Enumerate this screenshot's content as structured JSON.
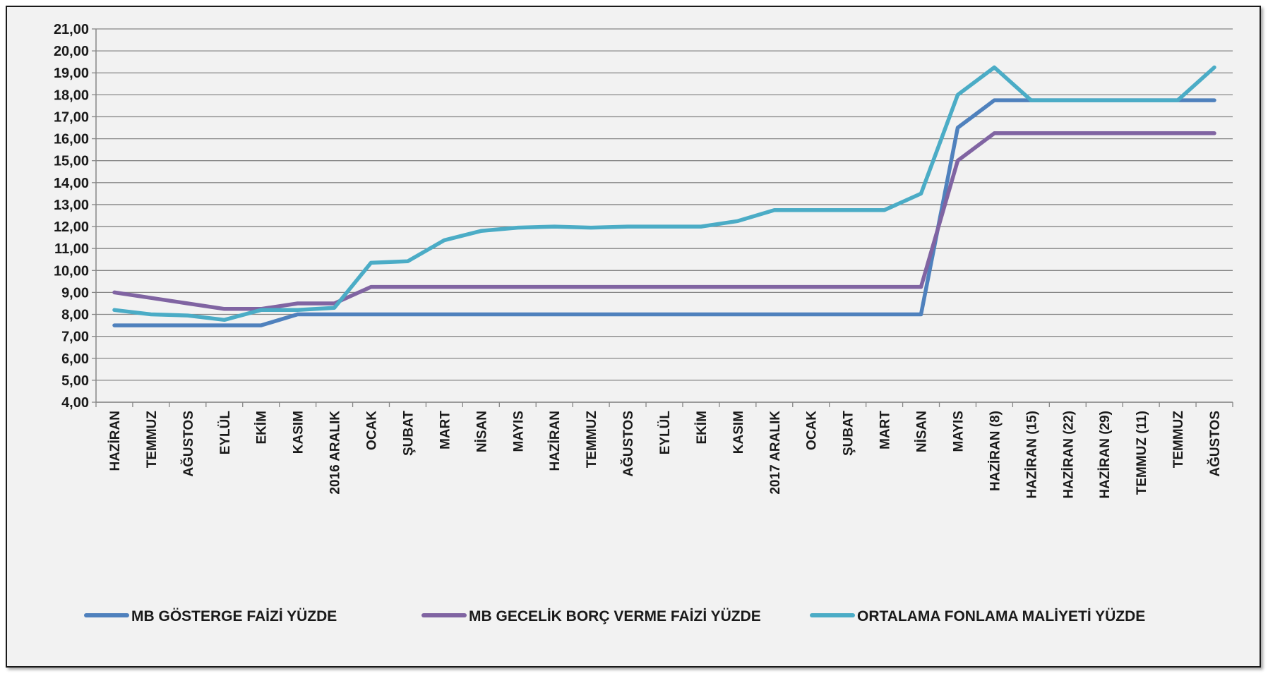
{
  "chart_data": {
    "type": "line",
    "title": "",
    "xlabel": "",
    "ylabel": "",
    "ylim": [
      4,
      21
    ],
    "ytick_step": 1,
    "ytick_labels": [
      "4,00",
      "5,00",
      "6,00",
      "7,00",
      "8,00",
      "9,00",
      "10,00",
      "11,00",
      "12,00",
      "13,00",
      "14,00",
      "15,00",
      "16,00",
      "17,00",
      "18,00",
      "19,00",
      "20,00",
      "21,00"
    ],
    "grid": true,
    "legend_position": "bottom",
    "categories": [
      "HAZİRAN",
      "TEMMUZ",
      "AĞUSTOS",
      "EYLÜL",
      "EKİM",
      "KASIM",
      "2016 ARALIK",
      "OCAK",
      "ŞUBAT",
      "MART",
      "NİSAN",
      "MAYIS",
      "HAZİRAN",
      "TEMMUZ",
      "AĞUSTOS",
      "EYLÜL",
      "EKİM",
      "KASIM",
      "2017 ARALIK",
      "OCAK",
      "ŞUBAT",
      "MART",
      "NİSAN",
      "MAYIS",
      "HAZİRAN (8)",
      "HAZİRAN (15)",
      "HAZİRAN (22)",
      "HAZİRAN (29)",
      "TEMMUZ (11)",
      "TEMMUZ",
      "AĞUSTOS"
    ],
    "series": [
      {
        "name": "MB GÖSTERGE FAİZİ YÜZDE",
        "color": "#4f81bd",
        "values": [
          7.5,
          7.5,
          7.5,
          7.5,
          7.5,
          8.0,
          8.0,
          8.0,
          8.0,
          8.0,
          8.0,
          8.0,
          8.0,
          8.0,
          8.0,
          8.0,
          8.0,
          8.0,
          8.0,
          8.0,
          8.0,
          8.0,
          8.0,
          16.5,
          17.75,
          17.75,
          17.75,
          17.75,
          17.75,
          17.75,
          17.75
        ]
      },
      {
        "name": "MB GECELİK BORÇ VERME FAİZİ YÜZDE",
        "color": "#8064a2",
        "values": [
          9.0,
          8.75,
          8.5,
          8.25,
          8.25,
          8.5,
          8.5,
          9.25,
          9.25,
          9.25,
          9.25,
          9.25,
          9.25,
          9.25,
          9.25,
          9.25,
          9.25,
          9.25,
          9.25,
          9.25,
          9.25,
          9.25,
          9.25,
          15.0,
          16.25,
          16.25,
          16.25,
          16.25,
          16.25,
          16.25,
          16.25
        ]
      },
      {
        "name": "ORTALAMA FONLAMA MALİYETİ YÜZDE",
        "color": "#4bacc6",
        "values": [
          8.2,
          8.0,
          7.95,
          7.75,
          8.2,
          8.2,
          8.3,
          10.35,
          10.42,
          11.38,
          11.8,
          11.95,
          12.0,
          11.95,
          12.0,
          12.0,
          12.0,
          12.25,
          12.75,
          12.75,
          12.75,
          12.75,
          13.5,
          18.0,
          19.25,
          17.75,
          17.75,
          17.75,
          17.75,
          17.75,
          19.25
        ]
      }
    ]
  }
}
